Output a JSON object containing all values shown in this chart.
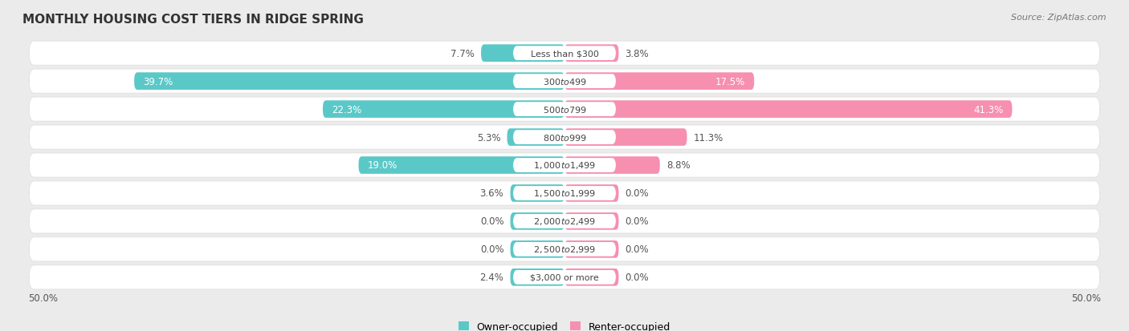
{
  "title": "MONTHLY HOUSING COST TIERS IN RIDGE SPRING",
  "source": "Source: ZipAtlas.com",
  "categories": [
    "Less than $300",
    "$300 to $499",
    "$500 to $799",
    "$800 to $999",
    "$1,000 to $1,499",
    "$1,500 to $1,999",
    "$2,000 to $2,499",
    "$2,500 to $2,999",
    "$3,000 or more"
  ],
  "owner_values": [
    7.7,
    39.7,
    22.3,
    5.3,
    19.0,
    3.6,
    0.0,
    0.0,
    2.4
  ],
  "renter_values": [
    3.8,
    17.5,
    41.3,
    11.3,
    8.8,
    0.0,
    0.0,
    0.0,
    0.0
  ],
  "owner_color": "#5BC8C8",
  "renter_color": "#F78FB1",
  "owner_color_light": "#A8DFE0",
  "renter_color_light": "#FAC0D3",
  "background_color": "#EBEBEB",
  "row_bg_color": "#F5F5F5",
  "axis_limit": 50.0,
  "title_fontsize": 11,
  "source_fontsize": 8,
  "label_fontsize": 8.5,
  "category_fontsize": 8,
  "legend_fontsize": 9,
  "bar_height": 0.62,
  "min_bar_width": 5.0,
  "label_color": "#555555",
  "label_color_inside": "white",
  "category_text_color": "#444444"
}
